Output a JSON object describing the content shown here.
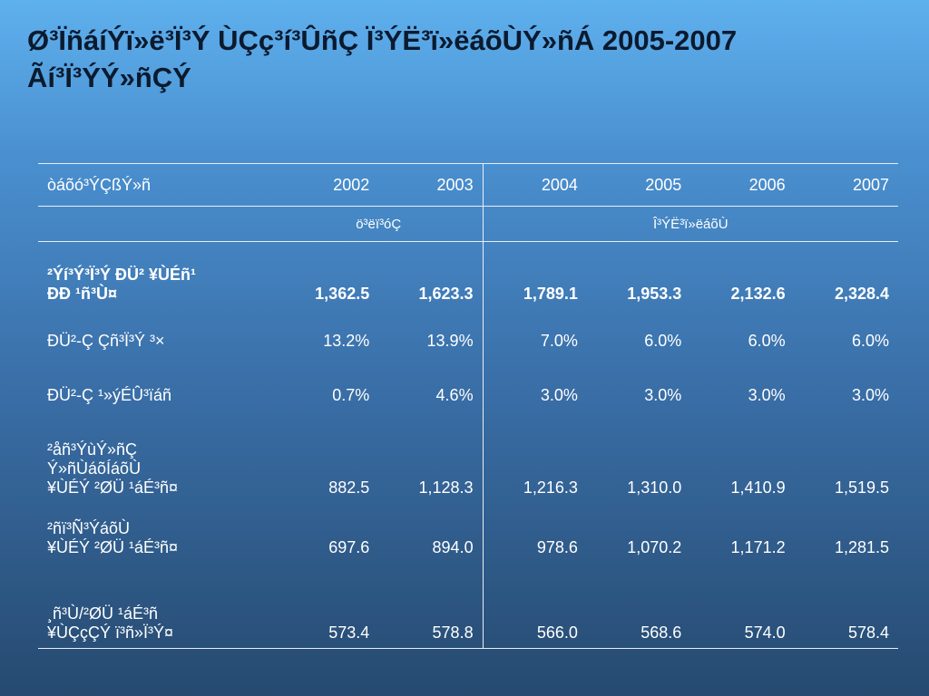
{
  "title": {
    "line1": "Ø³ÏñáíÝï»ë³Ï³Ý ÙÇç³í³ÛñÇ Ï³ÝË³ï»ëáõÙÝ»ñÁ 2005-2007",
    "line2": "Ãí³Ï³ÝÝ»ñÇÝ"
  },
  "table": {
    "header_label": "òáõó³ÝÇßÝ»ñ",
    "years": [
      "2002",
      "2003",
      "2004",
      "2005",
      "2006",
      "2007"
    ],
    "group_actual": "ö³ëï³óÇ",
    "group_forecast": "Î³ÝË³ï»ëáõÙ",
    "rows": [
      {
        "label": [
          "²Ýí³Ý³Ï³Ý ÐÜ²  ¥ÙÉñ¹",
          "ÐÐ ¹ñ³Ù¤"
        ],
        "values": [
          "1,362.5",
          "1,623.3",
          "1,789.1",
          "1,953.3",
          "2,132.6",
          "2,328.4"
        ]
      },
      {
        "label": [
          "ÐÜ²-Ç Çñ³Ï³Ý ³×"
        ],
        "values": [
          "13.2%",
          "13.9%",
          "7.0%",
          "6.0%",
          "6.0%",
          "6.0%"
        ]
      },
      {
        "label": [
          "ÐÜ²-Ç ¹»ýÉÛ³ïáñ"
        ],
        "values": [
          "0.7%",
          "4.6%",
          "3.0%",
          "3.0%",
          "3.0%",
          "3.0%"
        ]
      },
      {
        "label": [
          "²åñ³ÝùÝ»ñÇ",
          "Ý»ñÙáõÍáõÙ",
          "¥ÙÉÝ ²ØÜ ¹áÉ³ñ¤"
        ],
        "values": [
          "882.5",
          "1,128.3",
          "1,216.3",
          "1,310.0",
          "1,410.9",
          "1,519.5"
        ]
      },
      {
        "label": [
          "²ñï³Ñ³ÝáõÙ",
          "¥ÙÉÝ ²ØÜ ¹áÉ³ñ¤"
        ],
        "values": [
          "697.6",
          "894.0",
          "978.6",
          "1,070.2",
          "1,171.2",
          "1,281.5"
        ]
      },
      {
        "label": [
          "¸ñ³Ù/²ØÜ ¹áÉ³ñ",
          "¥ÙÇçÇÝ ï³ñ»Ï³Ý¤"
        ],
        "values": [
          "573.4",
          "578.8",
          "566.0",
          "568.6",
          "574.0",
          "578.4"
        ]
      }
    ]
  }
}
